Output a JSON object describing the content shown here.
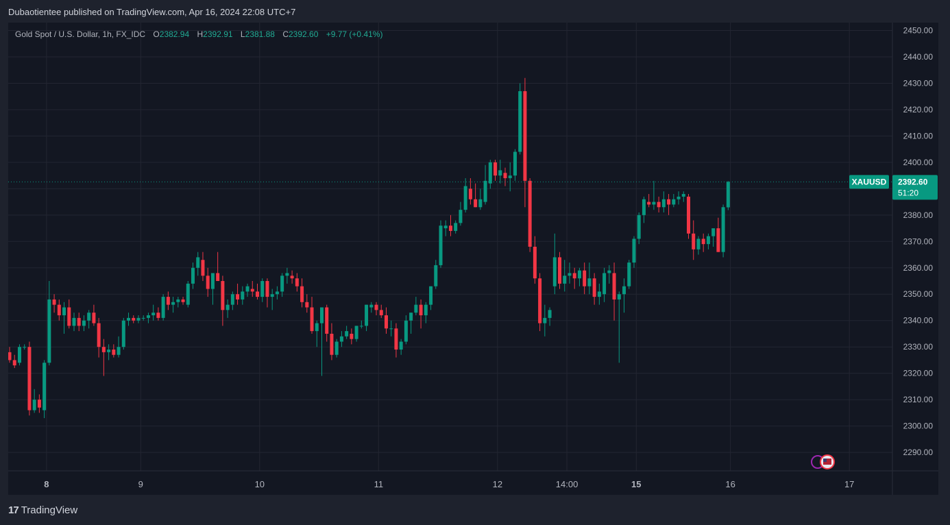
{
  "header": {
    "publish_line": "Dubaotientee published on TradingView.com, Apr 16, 2024 22:08 UTC+7"
  },
  "legend": {
    "symbol": "Gold Spot / U.S. Dollar, 1h, FX_IDC",
    "o_label": "O",
    "o_value": "2382.94",
    "h_label": "H",
    "h_value": "2392.91",
    "l_label": "L",
    "l_value": "2381.88",
    "c_label": "C",
    "c_value": "2392.60",
    "change": "+9.77 (+0.41%)"
  },
  "price_badge": {
    "ticker": "XAUUSD",
    "price": "2392.60",
    "countdown": "51:20"
  },
  "footer": {
    "brand": "TradingView",
    "logo": "17"
  },
  "colors": {
    "bull": "#089981",
    "bear": "#f23645",
    "grid": "#232632",
    "bg": "#131722",
    "axis_text": "#b2b5be"
  },
  "chart_data": {
    "type": "candlestick",
    "ylim": [
      2283,
      2453
    ],
    "y_ticks": [
      "2290.00",
      "2300.00",
      "2310.00",
      "2320.00",
      "2330.00",
      "2340.00",
      "2350.00",
      "2360.00",
      "2370.00",
      "2380.00",
      "2390.00",
      "2400.00",
      "2410.00",
      "2420.00",
      "2430.00",
      "2440.00",
      "2450.00"
    ],
    "x_ticks": [
      {
        "label": "8",
        "bold": true,
        "candle": 4
      },
      {
        "label": "9",
        "bold": false,
        "candle": 23
      },
      {
        "label": "10",
        "bold": false,
        "candle": 47
      },
      {
        "label": "11",
        "bold": false,
        "candle": 71
      },
      {
        "label": "12",
        "bold": false,
        "candle": 95
      },
      {
        "label": "14:00",
        "bold": false,
        "candle": 109
      },
      {
        "label": "15",
        "bold": true,
        "candle": 123
      },
      {
        "label": "16",
        "bold": false,
        "candle": 142
      },
      {
        "label": "17",
        "bold": false,
        "candle": 166
      }
    ],
    "last_price": 2392.6,
    "candles": [
      [
        2328,
        2330,
        2324,
        2325
      ],
      [
        2325,
        2327,
        2322,
        2323
      ],
      [
        2324,
        2331,
        2323,
        2330
      ],
      [
        2330,
        2331,
        2329,
        2330
      ],
      [
        2330,
        2332,
        2304,
        2306
      ],
      [
        2306,
        2314,
        2305,
        2310
      ],
      [
        2310,
        2312,
        2305,
        2307
      ],
      [
        2306,
        2325,
        2303,
        2324
      ],
      [
        2324,
        2355,
        2323,
        2348
      ],
      [
        2348,
        2350,
        2343,
        2346
      ],
      [
        2346,
        2348,
        2340,
        2342
      ],
      [
        2342,
        2347,
        2335,
        2345
      ],
      [
        2345,
        2348,
        2337,
        2338
      ],
      [
        2338,
        2343,
        2336,
        2341
      ],
      [
        2341,
        2343,
        2336,
        2338
      ],
      [
        2338,
        2342,
        2336,
        2340
      ],
      [
        2340,
        2344,
        2337,
        2343
      ],
      [
        2343,
        2346,
        2338,
        2339
      ],
      [
        2339,
        2341,
        2326,
        2330
      ],
      [
        2330,
        2333,
        2319,
        2328
      ],
      [
        2328,
        2331,
        2325,
        2329
      ],
      [
        2329,
        2331,
        2326,
        2327
      ],
      [
        2327,
        2334,
        2326,
        2330
      ],
      [
        2330,
        2341,
        2329,
        2340
      ],
      [
        2340,
        2343,
        2338,
        2341
      ],
      [
        2341,
        2342,
        2339,
        2340
      ],
      [
        2340,
        2342,
        2339,
        2341
      ],
      [
        2341,
        2342,
        2340,
        2341
      ],
      [
        2341,
        2343,
        2339,
        2342
      ],
      [
        2342,
        2346,
        2340,
        2343
      ],
      [
        2343,
        2345,
        2340,
        2341
      ],
      [
        2341,
        2350,
        2340,
        2349
      ],
      [
        2349,
        2351,
        2344,
        2346
      ],
      [
        2346,
        2349,
        2343,
        2347
      ],
      [
        2347,
        2349,
        2345,
        2348
      ],
      [
        2348,
        2349,
        2346,
        2347
      ],
      [
        2346,
        2355,
        2345,
        2354
      ],
      [
        2354,
        2362,
        2352,
        2360
      ],
      [
        2360,
        2366,
        2357,
        2364
      ],
      [
        2363,
        2366,
        2355,
        2357
      ],
      [
        2357,
        2360,
        2349,
        2352
      ],
      [
        2352,
        2358,
        2346,
        2358
      ],
      [
        2358,
        2366,
        2356,
        2355
      ],
      [
        2355,
        2357,
        2338,
        2344
      ],
      [
        2344,
        2348,
        2341,
        2346
      ],
      [
        2346,
        2351,
        2344,
        2350
      ],
      [
        2350,
        2354,
        2346,
        2348
      ],
      [
        2348,
        2353,
        2346,
        2351
      ],
      [
        2351,
        2354,
        2349,
        2353
      ],
      [
        2352,
        2355,
        2349,
        2351
      ],
      [
        2351,
        2354,
        2348,
        2349
      ],
      [
        2349,
        2356,
        2347,
        2355
      ],
      [
        2355,
        2356,
        2345,
        2349
      ],
      [
        2349,
        2352,
        2344,
        2350
      ],
      [
        2350,
        2353,
        2348,
        2351
      ],
      [
        2351,
        2358,
        2349,
        2357
      ],
      [
        2357,
        2360,
        2354,
        2358
      ],
      [
        2357,
        2359,
        2354,
        2356
      ],
      [
        2356,
        2358,
        2351,
        2353
      ],
      [
        2353,
        2356,
        2345,
        2347
      ],
      [
        2347,
        2350,
        2343,
        2345
      ],
      [
        2345,
        2349,
        2335,
        2336
      ],
      [
        2336,
        2340,
        2330,
        2339
      ],
      [
        2339,
        2345,
        2319,
        2345
      ],
      [
        2345,
        2346,
        2332,
        2335
      ],
      [
        2335,
        2339,
        2325,
        2327
      ],
      [
        2327,
        2333,
        2326,
        2332
      ],
      [
        2332,
        2336,
        2330,
        2334
      ],
      [
        2334,
        2338,
        2333,
        2336
      ],
      [
        2335,
        2337,
        2331,
        2333
      ],
      [
        2333,
        2338,
        2332,
        2338
      ],
      [
        2338,
        2340,
        2337,
        2338
      ],
      [
        2338,
        2346,
        2336,
        2346
      ],
      [
        2345,
        2347,
        2343,
        2346
      ],
      [
        2346,
        2347,
        2342,
        2344
      ],
      [
        2344,
        2346,
        2341,
        2342
      ],
      [
        2342,
        2345,
        2335,
        2337
      ],
      [
        2337,
        2340,
        2334,
        2337
      ],
      [
        2337,
        2339,
        2326,
        2329
      ],
      [
        2329,
        2333,
        2327,
        2332
      ],
      [
        2332,
        2342,
        2331,
        2340
      ],
      [
        2340,
        2343,
        2335,
        2343
      ],
      [
        2343,
        2349,
        2342,
        2346
      ],
      [
        2346,
        2348,
        2337,
        2342
      ],
      [
        2342,
        2347,
        2339,
        2346
      ],
      [
        2346,
        2353,
        2344,
        2353
      ],
      [
        2353,
        2363,
        2352,
        2361
      ],
      [
        2361,
        2378,
        2360,
        2376
      ],
      [
        2375,
        2378,
        2372,
        2376
      ],
      [
        2376,
        2380,
        2372,
        2374
      ],
      [
        2374,
        2378,
        2373,
        2377
      ],
      [
        2377,
        2385,
        2376,
        2382
      ],
      [
        2382,
        2394,
        2381,
        2391
      ],
      [
        2390,
        2394,
        2384,
        2386
      ],
      [
        2386,
        2392,
        2383,
        2383
      ],
      [
        2383,
        2390,
        2382,
        2386
      ],
      [
        2385,
        2399,
        2384,
        2393
      ],
      [
        2392,
        2401,
        2390,
        2400
      ],
      [
        2400,
        2401,
        2393,
        2395
      ],
      [
        2395,
        2401,
        2392,
        2397
      ],
      [
        2396,
        2398,
        2391,
        2394
      ],
      [
        2394,
        2400,
        2389,
        2395
      ],
      [
        2395,
        2405,
        2393,
        2404
      ],
      [
        2404,
        2430,
        2403,
        2427
      ],
      [
        2427,
        2432,
        2383,
        2393
      ],
      [
        2393,
        2394,
        2366,
        2368
      ],
      [
        2368,
        2372,
        2354,
        2356
      ],
      [
        2356,
        2358,
        2336,
        2339
      ],
      [
        2339,
        2346,
        2334,
        2341
      ],
      [
        2341,
        2345,
        2338,
        2344
      ],
      [
        2353,
        2373,
        2350,
        2364
      ],
      [
        2364,
        2366,
        2352,
        2354
      ],
      [
        2354,
        2363,
        2351,
        2357
      ],
      [
        2357,
        2362,
        2354,
        2358
      ],
      [
        2358,
        2360,
        2352,
        2356
      ],
      [
        2356,
        2360,
        2353,
        2359
      ],
      [
        2359,
        2362,
        2350,
        2353
      ],
      [
        2353,
        2362,
        2350,
        2356
      ],
      [
        2356,
        2358,
        2346,
        2349
      ],
      [
        2349,
        2354,
        2346,
        2351
      ],
      [
        2350,
        2360,
        2347,
        2358
      ],
      [
        2358,
        2361,
        2354,
        2359
      ],
      [
        2358,
        2362,
        2340,
        2348
      ],
      [
        2348,
        2351,
        2324,
        2350
      ],
      [
        2350,
        2356,
        2343,
        2353
      ],
      [
        2353,
        2363,
        2352,
        2362
      ],
      [
        2362,
        2372,
        2360,
        2371
      ],
      [
        2371,
        2381,
        2369,
        2380
      ],
      [
        2380,
        2387,
        2377,
        2386
      ],
      [
        2385,
        2388,
        2383,
        2384
      ],
      [
        2384,
        2393,
        2382,
        2385
      ],
      [
        2385,
        2387,
        2381,
        2383
      ],
      [
        2383,
        2389,
        2381,
        2386
      ],
      [
        2386,
        2388,
        2380,
        2384
      ],
      [
        2384,
        2388,
        2383,
        2386
      ],
      [
        2386,
        2389,
        2384,
        2387
      ],
      [
        2387,
        2389,
        2385,
        2388
      ],
      [
        2387,
        2388,
        2371,
        2373
      ],
      [
        2373,
        2378,
        2363,
        2367
      ],
      [
        2367,
        2372,
        2365,
        2371
      ],
      [
        2371,
        2373,
        2366,
        2369
      ],
      [
        2369,
        2373,
        2367,
        2372
      ],
      [
        2372,
        2374,
        2368,
        2375
      ],
      [
        2375,
        2379,
        2366,
        2366
      ],
      [
        2366,
        2384,
        2364,
        2383
      ],
      [
        2382.94,
        2392.91,
        2381.88,
        2392.6
      ]
    ]
  }
}
